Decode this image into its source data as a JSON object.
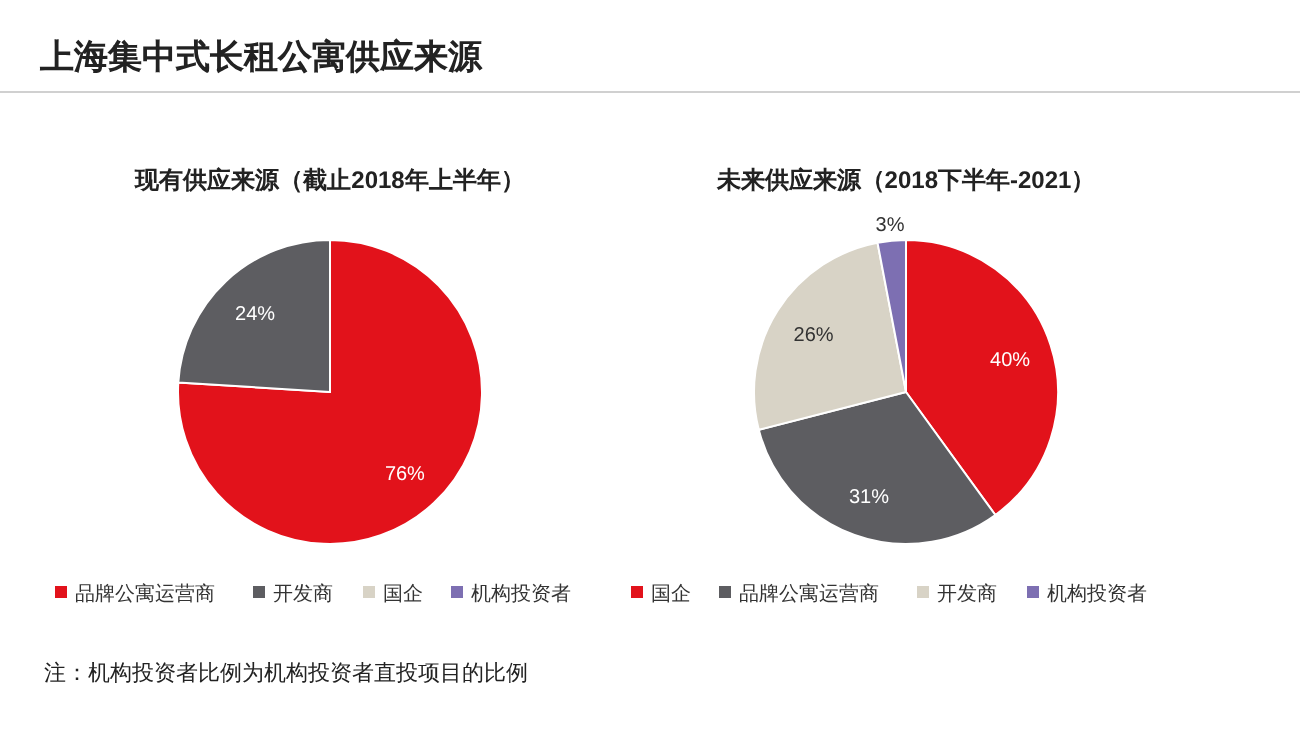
{
  "chart_data": [
    {
      "type": "pie",
      "title": "上海集中式长租公寓供应来源",
      "subtitle": "现有供应来源（截止2018年上半年）",
      "categories": [
        "品牌公寓运营商",
        "开发商",
        "国企",
        "机构投资者"
      ],
      "values": [
        76,
        24,
        0,
        0
      ],
      "colors": [
        "#e2121b",
        "#5d5d61",
        "#d8d3c6",
        "#7d6fb2"
      ],
      "value_labels": [
        "76%",
        "24%",
        null,
        null
      ],
      "legend": "bottom",
      "annotations": [
        "注：机构投资者比例为机构投资者直投项目的比例"
      ]
    },
    {
      "type": "pie",
      "title": "未来供应来源（2018下半年-2021）",
      "categories": [
        "国企",
        "品牌公寓运营商",
        "开发商",
        "机构投资者"
      ],
      "values": [
        40,
        31,
        26,
        3
      ],
      "colors": [
        "#e2121b",
        "#5d5d61",
        "#d8d3c6",
        "#7d6fb2"
      ],
      "value_labels": [
        "40%",
        "31%",
        "26%",
        "3%"
      ],
      "legend": "bottom"
    }
  ]
}
